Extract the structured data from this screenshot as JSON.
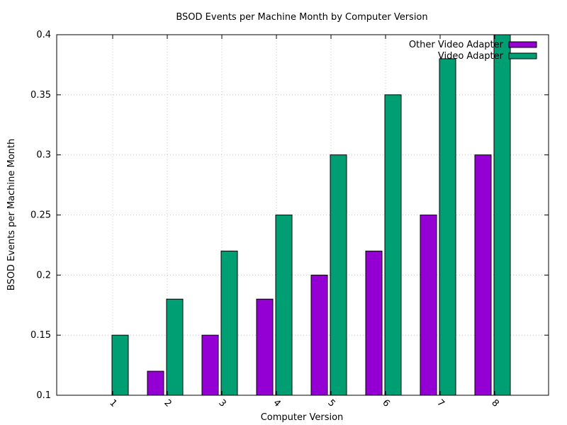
{
  "chart_data": {
    "type": "bar",
    "title": "BSOD Events per Machine Month by Computer Version",
    "xlabel": "Computer Version",
    "ylabel": "BSOD Events per Machine Month",
    "categories": [
      "1",
      "2",
      "3",
      "4",
      "5",
      "6",
      "7",
      "8"
    ],
    "ylim": [
      0.1,
      0.4
    ],
    "yticks": [
      "0.1",
      "0.15",
      "0.2",
      "0.25",
      "0.3",
      "0.35",
      "0.4"
    ],
    "grid": true,
    "legend_position": "top-right",
    "series": [
      {
        "name": "Other Video Adapter",
        "color": "#9400d3",
        "values": [
          0.1,
          0.12,
          0.15,
          0.18,
          0.2,
          0.22,
          0.25,
          0.3
        ]
      },
      {
        "name": "Video Adapter",
        "color": "#009e73",
        "values": [
          0.15,
          0.18,
          0.22,
          0.25,
          0.3,
          0.35,
          0.38,
          0.4
        ]
      }
    ]
  }
}
